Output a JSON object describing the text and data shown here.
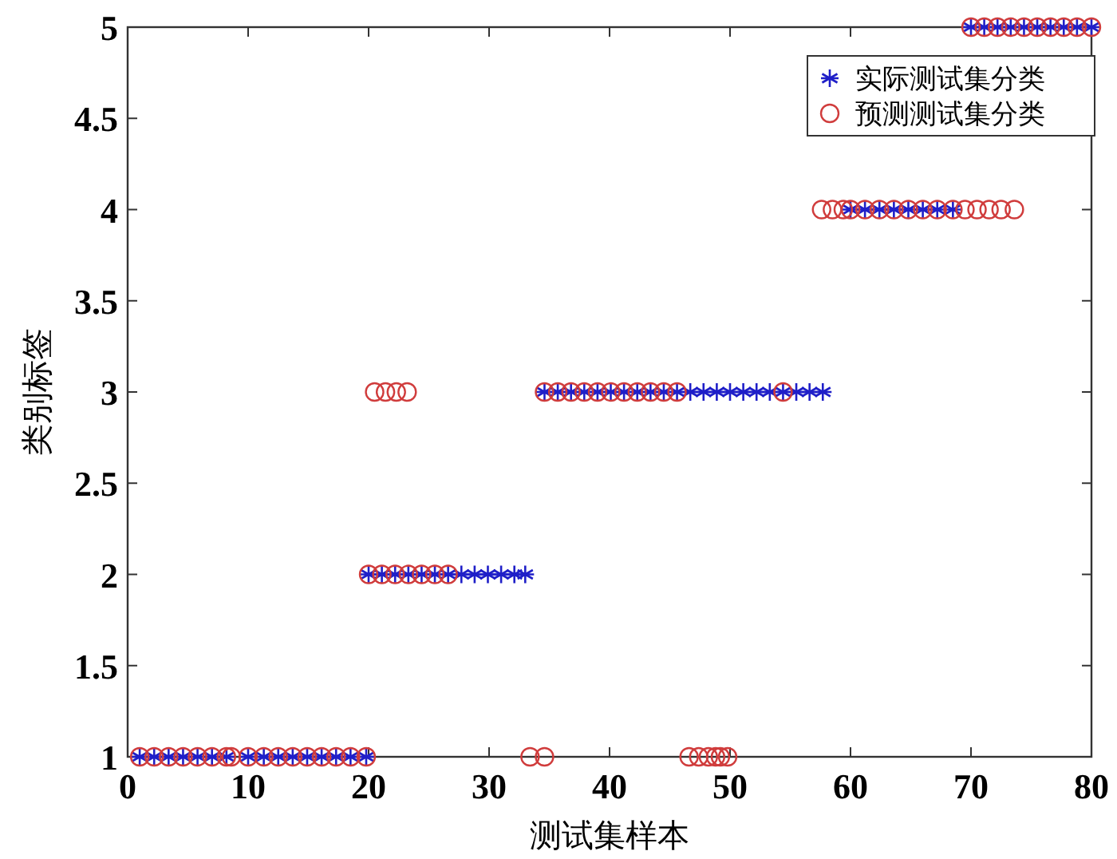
{
  "chart_data": {
    "type": "scatter",
    "xlabel": "测试集样本",
    "ylabel": "类别标签",
    "xlim": [
      0,
      80
    ],
    "xticks": [
      0,
      10,
      20,
      30,
      40,
      50,
      60,
      70,
      80
    ],
    "ylim": [
      1,
      5
    ],
    "yticks": [
      1,
      1.5,
      2,
      2.5,
      3,
      3.5,
      4,
      4.5,
      5
    ],
    "grid": false,
    "legend": "top right",
    "series": [
      {
        "name": "实际测试集分类",
        "color": "#1f1fc8",
        "marker": "cross",
        "x": [
          1,
          2.2,
          3.4,
          4.6,
          5.8,
          7,
          8.2,
          10,
          11.3,
          12.5,
          13.7,
          14.9,
          16.1,
          17.3,
          18.5,
          19.8,
          20,
          21.1,
          22.2,
          23.3,
          24.4,
          25.5,
          26.6,
          27.7,
          28.8,
          29.9,
          31,
          32.1,
          33,
          34.6,
          35.7,
          36.8,
          37.9,
          39,
          40.1,
          41.2,
          42.3,
          43.4,
          44.5,
          45.6,
          46.7,
          47.8,
          48.9,
          50,
          51.1,
          52.2,
          53.3,
          54.4,
          55.5,
          56.6,
          57.7,
          60,
          61.2,
          62.4,
          63.6,
          64.8,
          66,
          67.2,
          68.5,
          70,
          71.1,
          72.2,
          73.3,
          74.4,
          75.5,
          76.6,
          77.7,
          78.8,
          80
        ],
        "values": [
          1,
          1,
          1,
          1,
          1,
          1,
          1,
          1,
          1,
          1,
          1,
          1,
          1,
          1,
          1,
          1,
          2,
          2,
          2,
          2,
          2,
          2,
          2,
          2,
          2,
          2,
          2,
          2,
          2,
          3,
          3,
          3,
          3,
          3,
          3,
          3,
          3,
          3,
          3,
          3,
          3,
          3,
          3,
          3,
          3,
          3,
          3,
          3,
          3,
          3,
          3,
          4,
          4,
          4,
          4,
          4,
          4,
          4,
          4,
          5,
          5,
          5,
          5,
          5,
          5,
          5,
          5,
          5,
          5
        ]
      },
      {
        "name": "预测测试集分类",
        "color": "#d03c3c",
        "marker": "circle",
        "x": [
          1,
          2.2,
          3.4,
          4.6,
          5.8,
          7,
          8.2,
          8.6,
          10,
          11.3,
          12.5,
          13.7,
          14.9,
          16.1,
          17.3,
          18.5,
          19.8,
          33.4,
          34.6,
          46.6,
          47.4,
          48.2,
          48.8,
          49.2,
          49.8,
          20,
          21.1,
          22.2,
          23.3,
          24.4,
          25.5,
          26.6,
          20.5,
          21.4,
          22.3,
          23.2,
          34.6,
          35.7,
          36.8,
          37.9,
          39,
          40.1,
          41.2,
          42.3,
          43.4,
          44.5,
          45.6,
          54.4,
          57.6,
          58.5,
          59.4,
          60,
          61.2,
          62.4,
          63.6,
          64.8,
          66,
          67.2,
          68.5,
          69.5,
          70.5,
          71.5,
          72.5,
          73.6,
          70,
          71.1,
          72.2,
          73.3,
          74.4,
          75.5,
          76.6,
          77.7,
          78.8,
          80
        ],
        "values": [
          1,
          1,
          1,
          1,
          1,
          1,
          1,
          1,
          1,
          1,
          1,
          1,
          1,
          1,
          1,
          1,
          1,
          1,
          1,
          1,
          1,
          1,
          1,
          1,
          1,
          2,
          2,
          2,
          2,
          2,
          2,
          2,
          3,
          3,
          3,
          3,
          3,
          3,
          3,
          3,
          3,
          3,
          3,
          3,
          3,
          3,
          3,
          3,
          4,
          4,
          4,
          4,
          4,
          4,
          4,
          4,
          4,
          4,
          4,
          4,
          4,
          4,
          4,
          4,
          5,
          5,
          5,
          5,
          5,
          5,
          5,
          5,
          5,
          5
        ]
      }
    ]
  }
}
